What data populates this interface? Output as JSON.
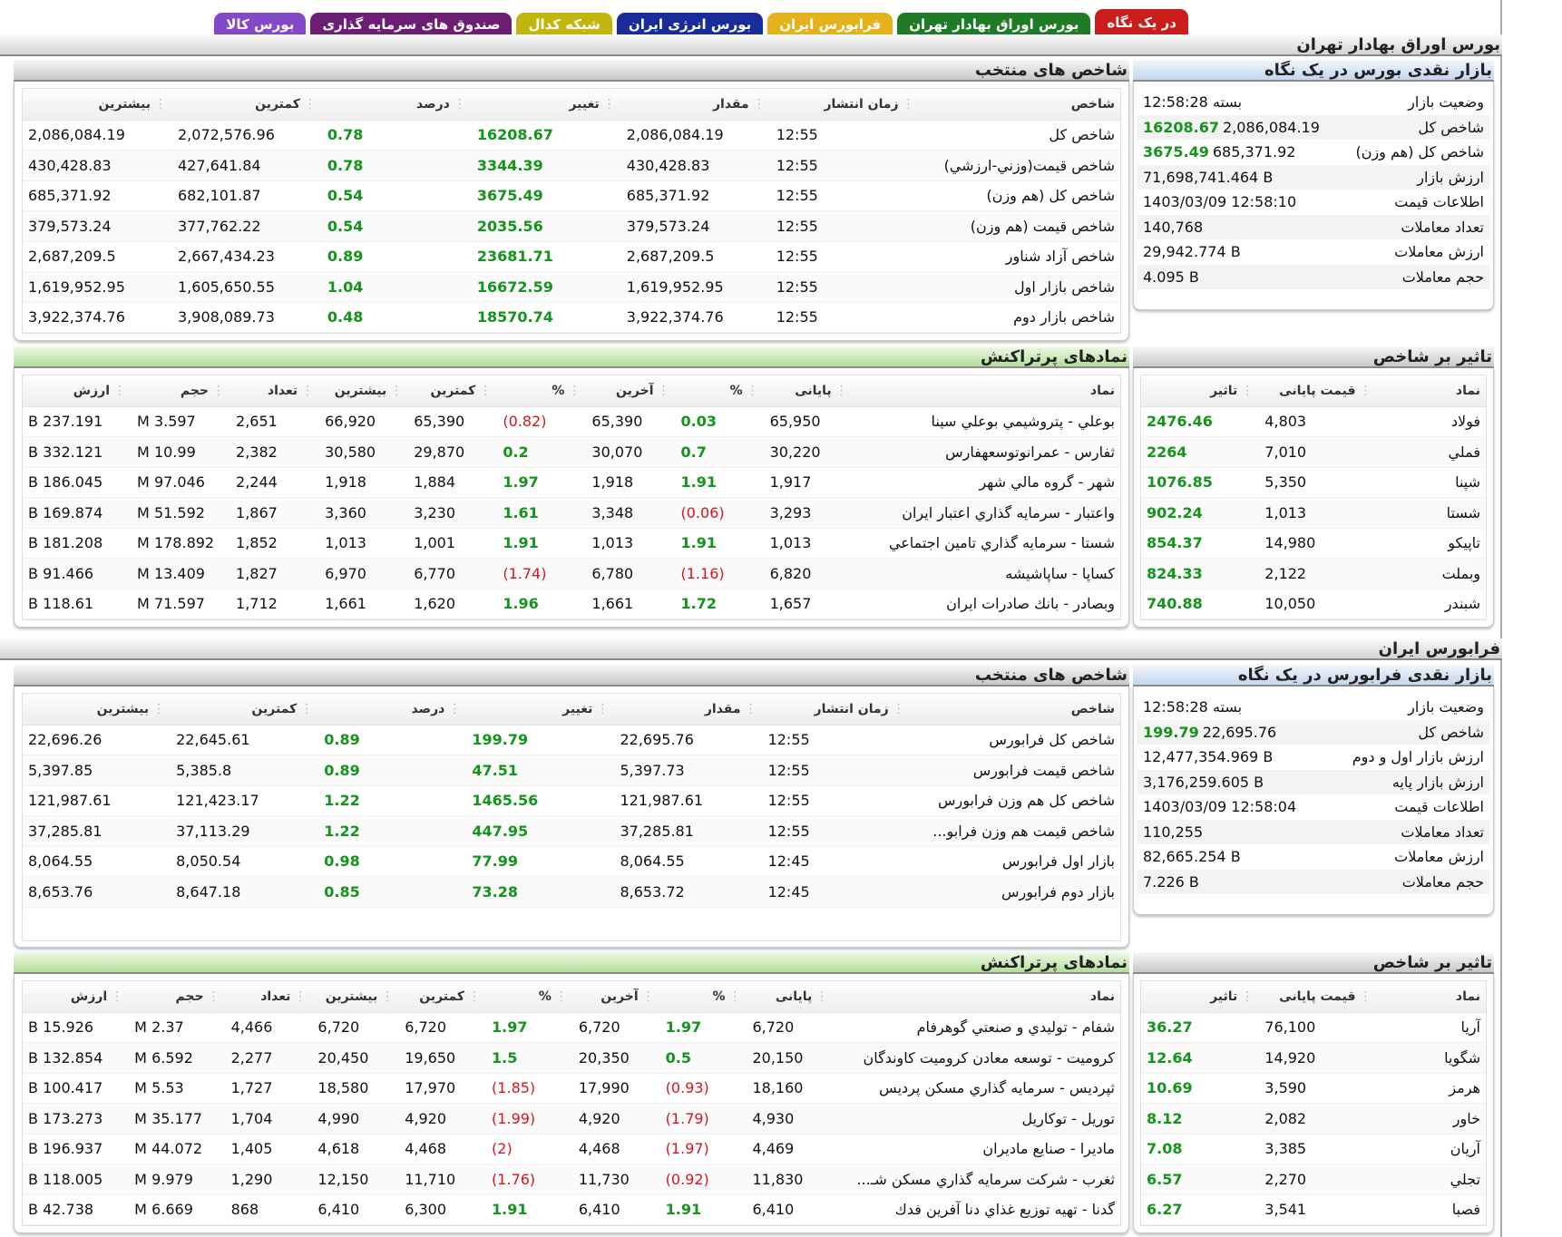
{
  "tabs": [
    {
      "label": "در یک نگاه",
      "color": "#cc1d1d"
    },
    {
      "label": "بورس اوراق بهادار تهران",
      "color": "#1f7b25"
    },
    {
      "label": "فرابورس ایران",
      "color": "#e4b21c"
    },
    {
      "label": "بورس انرژی ایران",
      "color": "#1a2c9a"
    },
    {
      "label": "شبکه کدال",
      "color": "#c2b50e"
    },
    {
      "label": "صندوق های سرمایه گذاری",
      "color": "#6b1e74"
    },
    {
      "label": "بورس کالا",
      "color": "#8449c8"
    }
  ],
  "tehran": {
    "section_title": "بورس اوراق بهادار تهران",
    "indices": {
      "title": "شاخص های منتخب",
      "headers": [
        "شاخص",
        "زمان انتشار",
        "مقدار",
        "تغییر",
        "درصد",
        "کمترین",
        "بیشترین"
      ],
      "rows": [
        [
          "شاخص کل",
          "12:55",
          "2,086,084.19",
          "16208.67",
          "0.78",
          "2,072,576.96",
          "2,086,084.19"
        ],
        [
          "شاخص قیمت(وزني-ارزشي)",
          "12:55",
          "430,428.83",
          "3344.39",
          "0.78",
          "427,641.84",
          "430,428.83"
        ],
        [
          "شاخص کل (هم وزن)",
          "12:55",
          "685,371.92",
          "3675.49",
          "0.54",
          "682,101.87",
          "685,371.92"
        ],
        [
          "شاخص قیمت (هم وزن)",
          "12:55",
          "379,573.24",
          "2035.56",
          "0.54",
          "377,762.22",
          "379,573.24"
        ],
        [
          "شاخص آزاد شناور",
          "12:55",
          "2,687,209.5",
          "23681.71",
          "0.89",
          "2,667,434.23",
          "2,687,209.5"
        ],
        [
          "شاخص بازار اول",
          "12:55",
          "1,619,952.95",
          "16672.59",
          "1.04",
          "1,605,650.55",
          "1,619,952.95"
        ],
        [
          "شاخص بازار دوم",
          "12:55",
          "3,922,374.76",
          "18570.74",
          "0.48",
          "3,908,089.73",
          "3,922,374.76"
        ]
      ]
    },
    "glance": {
      "title": "بازار نقدی بورس در یک نگاه",
      "rows": [
        {
          "label": "وضعیت بازار",
          "value": "بسته 12:58:28",
          "change": ""
        },
        {
          "label": "شاخص کل",
          "value": "2,086,084.19",
          "change": "16208.67"
        },
        {
          "label": "شاخص کل (هم وزن)",
          "value": "685,371.92",
          "change": "3675.49"
        },
        {
          "label": "ارزش بازار",
          "value": "71,698,741.464 B",
          "change": ""
        },
        {
          "label": "اطلاعات قیمت",
          "value": "1403/03/09 12:58:10",
          "change": ""
        },
        {
          "label": "تعداد معاملات",
          "value": "140,768",
          "change": ""
        },
        {
          "label": "ارزش معاملات",
          "value": "29,942.774 B",
          "change": ""
        },
        {
          "label": "حجم معاملات",
          "value": "4.095 B",
          "change": ""
        }
      ]
    },
    "active": {
      "title": "نمادهای پرتراکنش",
      "headers": [
        "نماد",
        "پایانی",
        "%",
        "آخرین",
        "%",
        "کمترین",
        "بیشترین",
        "تعداد",
        "حجم",
        "ارزش"
      ],
      "rows": [
        [
          "بوعلي - پتروشيمي بوعلي سينا",
          "65,950",
          "0.03",
          "65,390",
          "(0.82)",
          "65,390",
          "66,920",
          "2,651",
          "3.597 M",
          "237.191 B"
        ],
        [
          "ثفارس - عمرانوتوسعهفارس",
          "30,220",
          "0.7",
          "30,070",
          "0.2",
          "29,870",
          "30,580",
          "2,382",
          "10.99 M",
          "332.121 B"
        ],
        [
          "شهر - گروه مالي شهر",
          "1,917",
          "1.91",
          "1,918",
          "1.97",
          "1,884",
          "1,918",
          "2,244",
          "97.046 M",
          "186.045 B"
        ],
        [
          "واعتبار - سرمايه گذاري اعتبار ايران",
          "3,293",
          "(0.06)",
          "3,348",
          "1.61",
          "3,230",
          "3,360",
          "1,867",
          "51.592 M",
          "169.874 B"
        ],
        [
          "شستا - سرمايه گذاري تامين اجتماعي",
          "1,013",
          "1.91",
          "1,013",
          "1.91",
          "1,001",
          "1,013",
          "1,852",
          "178.892 M",
          "181.208 B"
        ],
        [
          "كساپا - ساپاشيشه",
          "6,820",
          "(1.16)",
          "6,780",
          "(1.74)",
          "6,770",
          "6,970",
          "1,827",
          "13.409 M",
          "91.466 B"
        ],
        [
          "وبصادر - بانك صادرات ايران",
          "1,657",
          "1.72",
          "1,661",
          "1.96",
          "1,620",
          "1,661",
          "1,712",
          "71.597 M",
          "118.61 B"
        ]
      ]
    },
    "impact": {
      "title": "تاثیر بر شاخص",
      "headers": [
        "نماد",
        "قیمت پایانی",
        "تاثیر"
      ],
      "rows": [
        [
          "فولاد",
          "4,803",
          "2476.46"
        ],
        [
          "فملي",
          "7,010",
          "2264"
        ],
        [
          "شپنا",
          "5,350",
          "1076.85"
        ],
        [
          "شستا",
          "1,013",
          "902.24"
        ],
        [
          "تاپيكو",
          "14,980",
          "854.37"
        ],
        [
          "وبملت",
          "2,122",
          "824.33"
        ],
        [
          "شبندر",
          "10,050",
          "740.88"
        ]
      ]
    }
  },
  "farabourse": {
    "section_title": "فرابورس ایران",
    "indices": {
      "title": "شاخص های منتخب",
      "headers": [
        "شاخص",
        "زمان انتشار",
        "مقدار",
        "تغییر",
        "درصد",
        "کمترین",
        "بیشترین"
      ],
      "rows": [
        [
          "شاخص کل فرابورس",
          "12:55",
          "22,695.76",
          "199.79",
          "0.89",
          "22,645.61",
          "22,696.26"
        ],
        [
          "شاخص قیمت فرابورس",
          "12:55",
          "5,397.73",
          "47.51",
          "0.89",
          "5,385.8",
          "5,397.85"
        ],
        [
          "شاخص کل هم وزن فرابورس",
          "12:55",
          "121,987.61",
          "1465.56",
          "1.22",
          "121,423.17",
          "121,987.61"
        ],
        [
          "شاخص قیمت هم وزن فرابو...",
          "12:55",
          "37,285.81",
          "447.95",
          "1.22",
          "37,113.29",
          "37,285.81"
        ],
        [
          "بازار اول فرابورس",
          "12:45",
          "8,064.55",
          "77.99",
          "0.98",
          "8,050.54",
          "8,064.55"
        ],
        [
          "بازار دوم فرابورس",
          "12:45",
          "8,653.72",
          "73.28",
          "0.85",
          "8,647.18",
          "8,653.76"
        ]
      ]
    },
    "glance": {
      "title": "بازار نقدی فرابورس در یک نگاه",
      "rows": [
        {
          "label": "وضعیت بازار",
          "value": "بسته 12:58:28",
          "change": ""
        },
        {
          "label": "شاخص کل",
          "value": "22,695.76",
          "change": "199.79"
        },
        {
          "label": "ارزش بازار اول و دوم",
          "value": "12,477,354.969 B",
          "change": ""
        },
        {
          "label": "ارزش بازار پایه",
          "value": "3,176,259.605 B",
          "change": ""
        },
        {
          "label": "اطلاعات قیمت",
          "value": "1403/03/09 12:58:04",
          "change": ""
        },
        {
          "label": "تعداد معاملات",
          "value": "110,255",
          "change": ""
        },
        {
          "label": "ارزش معاملات",
          "value": "82,665.254 B",
          "change": ""
        },
        {
          "label": "حجم معاملات",
          "value": "7.226 B",
          "change": ""
        }
      ]
    },
    "active": {
      "title": "نمادهای پرتراکنش",
      "headers": [
        "نماد",
        "پایانی",
        "%",
        "آخرین",
        "%",
        "کمترین",
        "بیشترین",
        "تعداد",
        "حجم",
        "ارزش"
      ],
      "rows": [
        [
          "شفام - توليدي و صنعتي گوهرفام",
          "6,720",
          "1.97",
          "6,720",
          "1.97",
          "6,720",
          "6,720",
          "4,466",
          "2.37 M",
          "15.926 B"
        ],
        [
          "كرومیت - توسعه معادن كروميت كاوندگان",
          "20,150",
          "0.5",
          "20,350",
          "1.5",
          "19,650",
          "20,450",
          "2,277",
          "6.592 M",
          "132.854 B"
        ],
        [
          "ثپردیس - سرمايه گذاري مسكن پرديس",
          "18,160",
          "(0.93)",
          "17,990",
          "(1.85)",
          "17,970",
          "18,580",
          "1,727",
          "5.53 M",
          "100.417 B"
        ],
        [
          "توریل - توكاريل",
          "4,930",
          "(1.79)",
          "4,920",
          "(1.99)",
          "4,920",
          "4,990",
          "1,704",
          "35.177 M",
          "173.273 B"
        ],
        [
          "مادیرا - صنايع ماديران",
          "4,469",
          "(1.97)",
          "4,468",
          "(2)",
          "4,468",
          "4,618",
          "1,405",
          "44.072 M",
          "196.937 B"
        ],
        [
          "ثغرب - شركت سرمايه گذاري مسكن شـ...",
          "11,830",
          "(0.92)",
          "11,730",
          "(1.76)",
          "11,710",
          "12,150",
          "1,290",
          "9.979 M",
          "118.005 B"
        ],
        [
          "گدنا - تهيه توزيع غذاي دنا آفرين فدك",
          "6,410",
          "1.91",
          "6,410",
          "1.91",
          "6,300",
          "6,410",
          "868",
          "6.669 M",
          "42.738 B"
        ]
      ]
    },
    "impact": {
      "title": "تاثیر بر شاخص",
      "headers": [
        "نماد",
        "قیمت پایانی",
        "تاثیر"
      ],
      "rows": [
        [
          "آريا",
          "76,100",
          "36.27"
        ],
        [
          "شگويا",
          "14,920",
          "12.64"
        ],
        [
          "هرمز",
          "3,590",
          "10.69"
        ],
        [
          "خاور",
          "2,082",
          "8.12"
        ],
        [
          "آريان",
          "3,385",
          "7.08"
        ],
        [
          "تجلي",
          "2,270",
          "6.57"
        ],
        [
          "فصبا",
          "3,541",
          "6.27"
        ]
      ]
    }
  }
}
